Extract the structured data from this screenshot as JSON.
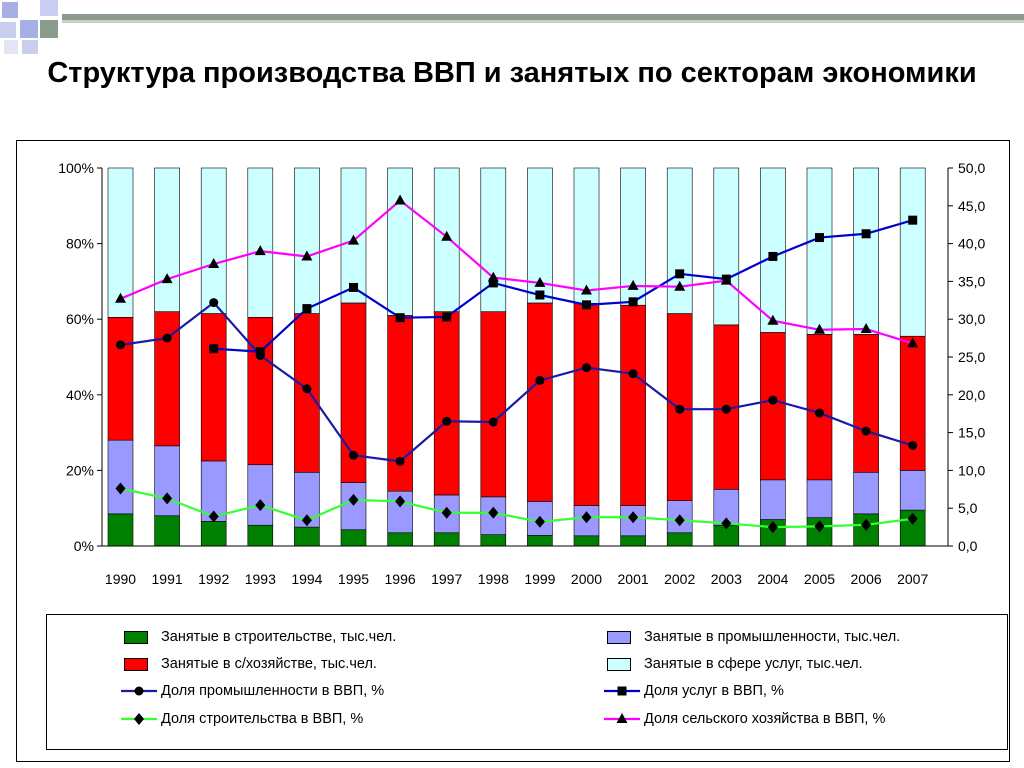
{
  "slide": {
    "title": "Структура производства ВВП и занятых по секторам экономики"
  },
  "colors": {
    "construction": "#008000",
    "industry": "#9999ff",
    "agriculture": "#ff0000",
    "services": "#ccffff",
    "industry_line": "#1a1aa6",
    "services_line": "#0000cc",
    "construction_line": "#33ff33",
    "agriculture_line": "#ff00ff",
    "deco_gray": "#8c9c8c",
    "deco_blue": "#a6b0e6"
  },
  "chart_data": {
    "type": "bar",
    "stacked": true,
    "categories": [
      "1990",
      "1991",
      "1992",
      "1993",
      "1994",
      "1995",
      "1996",
      "1997",
      "1998",
      "1999",
      "2000",
      "2001",
      "2002",
      "2003",
      "2004",
      "2005",
      "2006",
      "2007"
    ],
    "y_left": {
      "range": [
        0,
        100
      ],
      "ticks": [
        "0%",
        "20%",
        "40%",
        "60%",
        "80%",
        "100%"
      ]
    },
    "y_right": {
      "range": [
        0,
        50
      ],
      "ticks": [
        "0,0",
        "5,0",
        "10,0",
        "15,0",
        "20,0",
        "25,0",
        "30,0",
        "35,0",
        "40,0",
        "45,0",
        "50,0"
      ]
    },
    "grid": false,
    "legend_position": "bottom",
    "bar_series": [
      {
        "key": "construction",
        "name": "Занятые в строительстве, тыс.чел.",
        "values": [
          8.5,
          8,
          6.5,
          5.5,
          5,
          4.3,
          3.5,
          3.5,
          3,
          2.8,
          2.7,
          2.7,
          3.5,
          5.5,
          7,
          7.5,
          8.5,
          9.5
        ]
      },
      {
        "key": "industry",
        "name": "Занятые в промышленности, тыс.чел.",
        "values": [
          19.5,
          18.5,
          16,
          16,
          14.5,
          12.5,
          11,
          10,
          10,
          9,
          8,
          8,
          8.5,
          9.5,
          10.5,
          10,
          11,
          10.5
        ]
      },
      {
        "key": "agriculture",
        "name": "Занятые в с/хозяйстве, тыс.чел.",
        "values": [
          32.5,
          35.5,
          39,
          39,
          42,
          47.5,
          46.5,
          48.5,
          49,
          52.5,
          53.5,
          53,
          49.5,
          43.5,
          39,
          38.5,
          36.5,
          35.5
        ]
      },
      {
        "key": "services",
        "name": "Занятые в сфере услуг, тыс.чел.",
        "values": [
          39.5,
          38,
          38.5,
          39.5,
          38.5,
          35.7,
          39,
          38,
          38,
          35.7,
          35.8,
          36.3,
          38.5,
          41.5,
          43.5,
          44,
          44,
          44.5
        ]
      }
    ],
    "line_series": [
      {
        "key": "industry_line",
        "name": "Доля промышленности в ВВП, %",
        "marker": "circle",
        "values": [
          26.6,
          27.5,
          32.2,
          25.2,
          20.8,
          12,
          11.2,
          16.5,
          16.4,
          21.9,
          23.6,
          22.8,
          18.1,
          18.1,
          19.3,
          17.6,
          15.2,
          13.3
        ]
      },
      {
        "key": "services_line",
        "name": "Доля услуг в ВВП, %",
        "marker": "square",
        "values": [
          null,
          null,
          26.1,
          25.7,
          31.4,
          34.2,
          30.2,
          30.3,
          34.8,
          33.2,
          31.9,
          32.3,
          36,
          35.3,
          38.3,
          40.8,
          41.3,
          43.1
        ]
      },
      {
        "key": "construction_line",
        "name": "Доля строительства в ВВП, %",
        "marker": "diamond",
        "values": [
          7.6,
          6.3,
          3.9,
          5.4,
          3.4,
          6.1,
          5.9,
          4.4,
          4.4,
          3.2,
          3.8,
          3.8,
          3.4,
          3,
          2.5,
          2.6,
          2.8,
          3.6
        ]
      },
      {
        "key": "agriculture_line",
        "name": "Доля сельского хозяйства в ВВП, %",
        "marker": "triangle",
        "values": [
          32.7,
          35.3,
          37.3,
          39,
          38.3,
          40.4,
          45.7,
          40.9,
          35.5,
          34.8,
          33.8,
          34.4,
          34.3,
          35.1,
          29.8,
          28.6,
          28.7,
          26.8
        ]
      }
    ]
  },
  "legend": {
    "items": [
      {
        "label": "Занятые в строительстве, тыс.чел.",
        "kind": "swatch",
        "color_key": "construction"
      },
      {
        "label": "Занятые в промышленности, тыс.чел.",
        "kind": "swatch",
        "color_key": "industry"
      },
      {
        "label": "Занятые в с/хозяйстве, тыс.чел.",
        "kind": "swatch",
        "color_key": "agriculture"
      },
      {
        "label": "Занятые в сфере услуг, тыс.чел.",
        "kind": "swatch",
        "color_key": "services"
      },
      {
        "label": "Доля промышленности в ВВП, %",
        "kind": "line",
        "color_key": "industry_line",
        "marker": "circle"
      },
      {
        "label": "Доля услуг в ВВП, %",
        "kind": "line",
        "color_key": "services_line",
        "marker": "square"
      },
      {
        "label": "Доля строительства в ВВП, %",
        "kind": "line",
        "color_key": "construction_line",
        "marker": "diamond"
      },
      {
        "label": "Доля сельского хозяйства в ВВП, %",
        "kind": "line",
        "color_key": "agriculture_line",
        "marker": "triangle"
      }
    ]
  }
}
